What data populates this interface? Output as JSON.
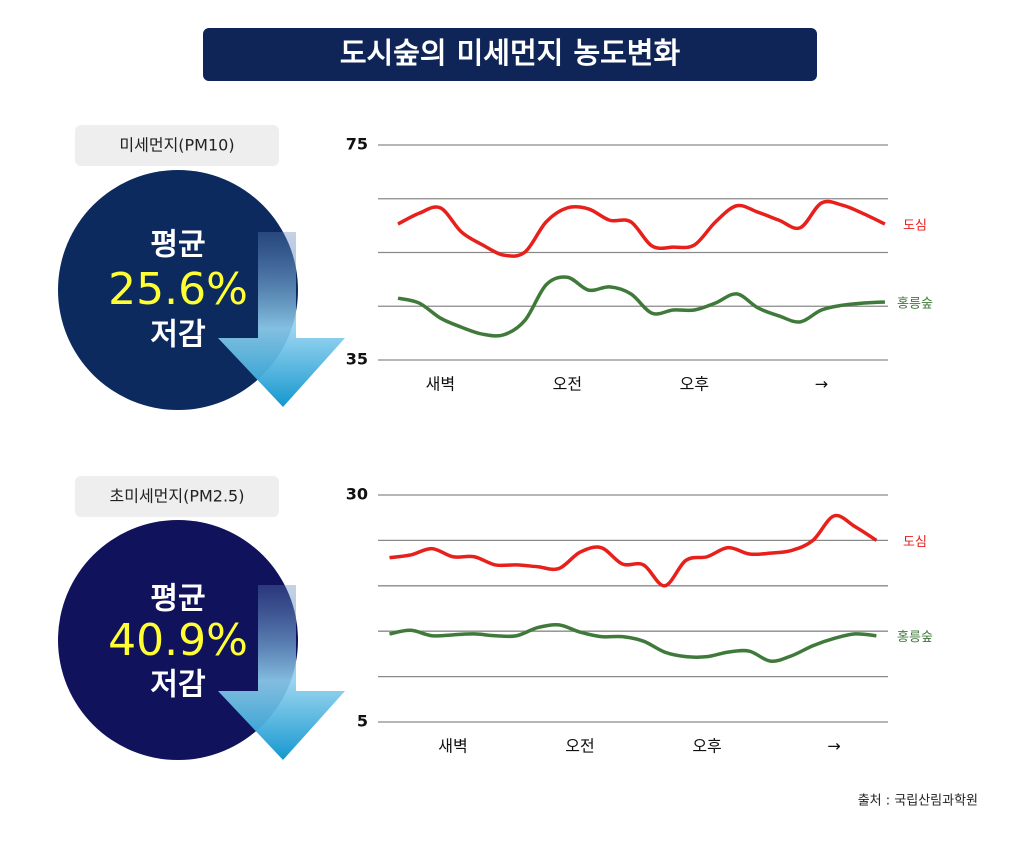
{
  "title": "도시숲의 미세먼지 농도변화",
  "source": "출처 : 국립산림과학원",
  "panels": [
    {
      "label": "미세먼지(PM10)",
      "line1": "평균",
      "figure": "25.6%",
      "line2": "저감"
    },
    {
      "label": "초미세먼지(PM2.5)",
      "line1": "평균",
      "figure": "40.9%",
      "line2": "저감"
    }
  ],
  "chart_data": [
    {
      "type": "line",
      "categories": [
        null,
        null,
        "새벽",
        null,
        null,
        null,
        null,
        null,
        "오전",
        null,
        null,
        null,
        null,
        null,
        "오후",
        null,
        null,
        null,
        null,
        null,
        "→",
        null,
        null,
        null
      ],
      "series": [
        {
          "name": "도심",
          "color": "#e8201c",
          "values": [
            60.3,
            62.3,
            63.3,
            58.8,
            56.4,
            54.5,
            55.1,
            60.7,
            63.3,
            63.1,
            61.0,
            60.7,
            56.2,
            56.0,
            56.4,
            60.7,
            63.7,
            62.5,
            61.0,
            59.6,
            64.2,
            63.8,
            62.2,
            60.3
          ]
        },
        {
          "name": "홍릉숲",
          "color": "#3f7a3a",
          "values": [
            46.5,
            45.6,
            42.8,
            41.1,
            39.8,
            39.7,
            42.4,
            49.0,
            50.4,
            48.0,
            48.6,
            47.3,
            43.7,
            44.3,
            44.3,
            45.6,
            47.3,
            44.7,
            43.2,
            42.1,
            44.3,
            45.2,
            45.6,
            45.8
          ]
        }
      ],
      "ylim": [
        35,
        75
      ],
      "yticks": [
        35,
        75
      ],
      "minor_yticks": [
        45,
        55,
        65
      ],
      "grid": true
    },
    {
      "type": "line",
      "categories": [
        null,
        null,
        null,
        "새벽",
        null,
        null,
        null,
        null,
        null,
        "오전",
        null,
        null,
        null,
        null,
        null,
        "오후",
        null,
        null,
        null,
        null,
        null,
        "→",
        null,
        null
      ],
      "series": [
        {
          "name": "도심",
          "color": "#e8201c",
          "values": [
            23.1,
            23.4,
            24.1,
            23.2,
            23.2,
            22.3,
            22.3,
            22.1,
            21.9,
            23.7,
            24.2,
            22.4,
            22.3,
            20.0,
            22.8,
            23.2,
            24.2,
            23.5,
            23.6,
            23.9,
            25.0,
            27.7,
            26.5,
            25.0
          ]
        },
        {
          "name": "홍릉숲",
          "color": "#3f7a3a",
          "values": [
            14.7,
            15.1,
            14.5,
            14.6,
            14.7,
            14.5,
            14.5,
            15.4,
            15.7,
            14.9,
            14.4,
            14.4,
            13.9,
            12.7,
            12.2,
            12.2,
            12.7,
            12.8,
            11.7,
            12.3,
            13.4,
            14.2,
            14.7,
            14.5
          ]
        }
      ],
      "ylim": [
        5,
        30
      ],
      "yticks": [
        5,
        30
      ],
      "minor_yticks": [
        10,
        15,
        20,
        25
      ],
      "grid": true
    }
  ]
}
